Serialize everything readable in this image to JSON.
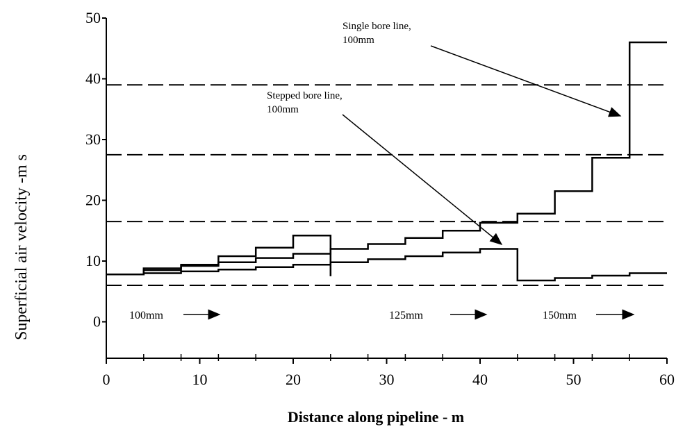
{
  "chart_data": {
    "type": "line",
    "step": true,
    "xlabel": "Distance along pipeline - m",
    "ylabel": "Superficial air velocity -m s",
    "xlim": [
      0,
      60
    ],
    "ylim": [
      -6,
      50
    ],
    "x_ticks": [
      0,
      10,
      20,
      30,
      40,
      50,
      60
    ],
    "y_ticks": [
      0,
      10,
      20,
      30,
      40,
      50
    ],
    "x_minor_ticks": [
      4,
      8,
      12,
      16,
      20,
      24,
      28,
      32,
      36,
      40,
      44,
      48,
      52,
      56
    ],
    "grid": false,
    "reference_lines": [
      6,
      16.5,
      27.5,
      39
    ],
    "series": [
      {
        "name": "Single bore line, 100mm",
        "x": [
          0,
          4,
          8,
          12,
          16,
          20,
          24,
          28,
          32,
          36,
          40,
          44,
          48,
          52,
          56,
          60
        ],
        "y": [
          7.8,
          8.5,
          9.2,
          9.8,
          10.5,
          11.2,
          12.0,
          12.8,
          13.8,
          15.0,
          16.3,
          17.8,
          21.5,
          27.0,
          46.0,
          46.0
        ]
      },
      {
        "name": "Stepped bore line, 100mm",
        "x": [
          0,
          4,
          8,
          12,
          16,
          20,
          24,
          28,
          32,
          36,
          40,
          44,
          48,
          52,
          56,
          60
        ],
        "y": [
          7.8,
          8.0,
          8.3,
          8.6,
          9.0,
          9.4,
          9.8,
          10.3,
          10.8,
          11.4,
          12.0,
          6.8,
          7.2,
          7.6,
          8.0,
          8.0
        ]
      }
    ],
    "series_b_first_segment": [
      {
        "x": [
          0,
          4,
          8,
          12,
          16,
          20,
          24
        ],
        "y": [
          7.8,
          8.8,
          9.4,
          10.8,
          12.2,
          14.2,
          7.5
        ]
      }
    ],
    "annotations": [
      {
        "lines": [
          "Single bore line,",
          "100mm"
        ]
      },
      {
        "lines": [
          "Stepped bore line,",
          "100mm"
        ]
      }
    ],
    "size_labels": [
      "100mm",
      "125mm",
      "150mm"
    ]
  }
}
